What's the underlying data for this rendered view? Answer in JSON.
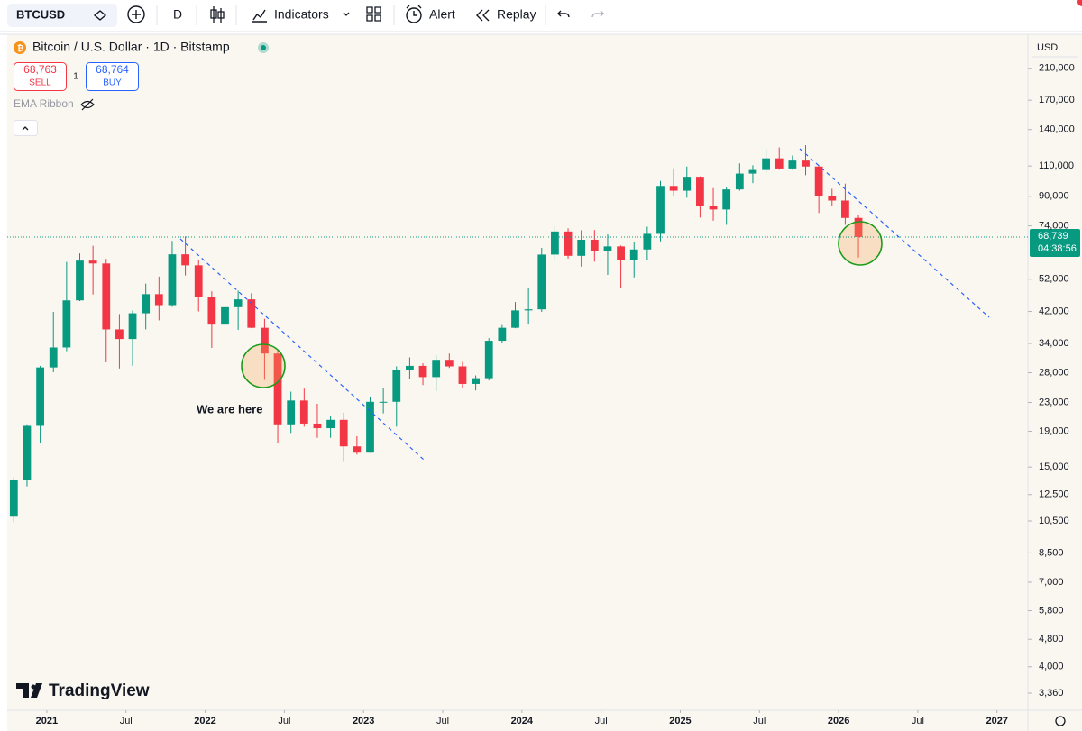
{
  "toolbar": {
    "symbol": "BTCUSD",
    "interval": "D",
    "indicators": "Indicators",
    "alert": "Alert",
    "replay": "Replay"
  },
  "legend": {
    "title": "Bitcoin / U.S. Dollar · 1D · Bitstamp",
    "sell_price": "68,763",
    "sell": "SELL",
    "spread": "1",
    "buy_price": "68,764",
    "buy": "BUY",
    "indicator": "EMA Ribbon"
  },
  "currency": "USD",
  "brand": "TradingView",
  "chart_data": {
    "type": "candlestick",
    "log_scale": true,
    "up_color": "#089981",
    "down_color": "#f23645",
    "x": [
      "2020-10",
      "2020-11",
      "2020-12",
      "2021-01",
      "2021-02",
      "2021-03",
      "2021-04",
      "2021-05",
      "2021-06",
      "2021-07",
      "2021-08",
      "2021-09",
      "2021-10",
      "2021-11",
      "2021-12",
      "2022-01",
      "2022-02",
      "2022-03",
      "2022-04",
      "2022-05",
      "2022-06",
      "2022-07",
      "2022-08",
      "2022-09",
      "2022-10",
      "2022-11",
      "2022-12",
      "2023-01",
      "2023-02",
      "2023-03",
      "2023-04",
      "2023-05",
      "2023-06",
      "2023-07",
      "2023-08",
      "2023-09",
      "2023-10",
      "2023-11",
      "2023-12",
      "2024-01",
      "2024-02",
      "2024-03",
      "2024-04",
      "2024-05",
      "2024-06",
      "2024-07",
      "2024-08",
      "2024-09",
      "2024-10",
      "2024-11",
      "2024-12",
      "2025-01",
      "2025-02",
      "2025-03",
      "2025-04",
      "2025-05",
      "2025-06",
      "2025-07",
      "2025-08",
      "2025-09",
      "2025-10",
      "2025-11",
      "2025-12",
      "2026-01",
      "2026-02"
    ],
    "open": [
      10800,
      13800,
      19700,
      29000,
      33100,
      45200,
      58800,
      57700,
      37300,
      35000,
      41500,
      47100,
      43800,
      61300,
      57000,
      46200,
      38500,
      43200,
      45500,
      37700,
      31800,
      19900,
      23300,
      20000,
      19400,
      20500,
      17200,
      16500,
      23100,
      23100,
      28500,
      29300,
      27200,
      30500,
      29200,
      26000,
      27000,
      34600,
      37700,
      42300,
      42600,
      61200,
      71300,
      60700,
      67500,
      62700,
      64600,
      58900,
      63300,
      70200,
      96400,
      93400,
      102400,
      84300,
      82500,
      94200,
      104600,
      107100,
      115700,
      108200,
      114000,
      109600,
      90400,
      87500,
      78000
    ],
    "high": [
      14000,
      19900,
      29300,
      41900,
      58300,
      61700,
      64900,
      59500,
      41300,
      42300,
      50500,
      52900,
      67000,
      69000,
      59100,
      48000,
      45800,
      48200,
      47400,
      40000,
      32400,
      24700,
      25200,
      22800,
      21000,
      21500,
      18400,
      23900,
      25300,
      29200,
      31000,
      29800,
      31400,
      31800,
      30100,
      27500,
      35200,
      38400,
      44700,
      48900,
      64000,
      73800,
      72800,
      71900,
      72000,
      70000,
      65000,
      66500,
      73600,
      99600,
      108300,
      109600,
      102700,
      95000,
      95700,
      111900,
      110500,
      123200,
      124400,
      117900,
      126200,
      110600,
      94600,
      97900,
      79300
    ],
    "low": [
      10400,
      13200,
      17600,
      28100,
      32300,
      45000,
      47000,
      30000,
      28800,
      29300,
      37300,
      39600,
      43300,
      53300,
      42000,
      33000,
      34300,
      37200,
      37600,
      26700,
      17600,
      18800,
      19600,
      18200,
      18200,
      15500,
      16300,
      16500,
      21400,
      19600,
      26900,
      25800,
      24800,
      28900,
      25300,
      24900,
      26600,
      34100,
      37600,
      38500,
      41900,
      59100,
      59600,
      56500,
      58400,
      53500,
      49000,
      52600,
      58900,
      66800,
      90500,
      89200,
      78200,
      76600,
      74500,
      93400,
      98200,
      105300,
      107300,
      107300,
      103500,
      80600,
      84400,
      74500,
      60000
    ],
    "close": [
      13800,
      19700,
      29000,
      33100,
      45200,
      58800,
      57700,
      37300,
      35000,
      41500,
      47100,
      43800,
      61300,
      57000,
      46200,
      38500,
      43200,
      45500,
      37700,
      31800,
      19900,
      23300,
      20000,
      19400,
      20500,
      17200,
      16500,
      23100,
      23100,
      28500,
      29300,
      27200,
      30500,
      29200,
      26000,
      27000,
      34600,
      37700,
      42300,
      42600,
      61200,
      71300,
      60700,
      67500,
      62700,
      64600,
      58900,
      63300,
      70200,
      96400,
      93400,
      102400,
      84300,
      82500,
      94200,
      104600,
      107100,
      115700,
      108200,
      114000,
      109600,
      90400,
      87500,
      78000,
      68739
    ],
    "xlim": [
      "2020-10",
      "2027-03"
    ],
    "xticks": [
      {
        "value": "2021-01",
        "label": "2021"
      },
      {
        "value": "2021-07",
        "label": "Jul"
      },
      {
        "value": "2022-01",
        "label": "2022"
      },
      {
        "value": "2022-07",
        "label": "Jul"
      },
      {
        "value": "2023-01",
        "label": "2023"
      },
      {
        "value": "2023-07",
        "label": "Jul"
      },
      {
        "value": "2024-01",
        "label": "2024"
      },
      {
        "value": "2024-07",
        "label": "Jul"
      },
      {
        "value": "2025-01",
        "label": "2025"
      },
      {
        "value": "2025-07",
        "label": "Jul"
      },
      {
        "value": "2026-01",
        "label": "2026"
      },
      {
        "value": "2026-07",
        "label": "Jul"
      },
      {
        "value": "2027-01",
        "label": "2027"
      }
    ],
    "ylim": [
      3000,
      263000
    ],
    "yticks": [
      {
        "value": 210000,
        "label": "210,000"
      },
      {
        "value": 170000,
        "label": "170,000"
      },
      {
        "value": 140000,
        "label": "140,000"
      },
      {
        "value": 110000,
        "label": "110,000"
      },
      {
        "value": 90000,
        "label": "90,000"
      },
      {
        "value": 74000,
        "label": "74,000"
      },
      {
        "value": 52000,
        "label": "52,000"
      },
      {
        "value": 42000,
        "label": "42,000"
      },
      {
        "value": 34000,
        "label": "34,000"
      },
      {
        "value": 28000,
        "label": "28,000"
      },
      {
        "value": 23000,
        "label": "23,000"
      },
      {
        "value": 19000,
        "label": "19,000"
      },
      {
        "value": 15000,
        "label": "15,000"
      },
      {
        "value": 12500,
        "label": "12,500"
      },
      {
        "value": 10500,
        "label": "10,500"
      },
      {
        "value": 8500,
        "label": "8,500"
      },
      {
        "value": 7000,
        "label": "7,000"
      },
      {
        "value": 5800,
        "label": "5,800"
      },
      {
        "value": 4800,
        "label": "4,800"
      },
      {
        "value": 4000,
        "label": "4,000"
      },
      {
        "value": 3360,
        "label": "3,360"
      }
    ],
    "annotations": [
      "We are here"
    ],
    "last_price": {
      "value": 68739,
      "label": "68,739"
    },
    "countdown": "04:38:56"
  }
}
